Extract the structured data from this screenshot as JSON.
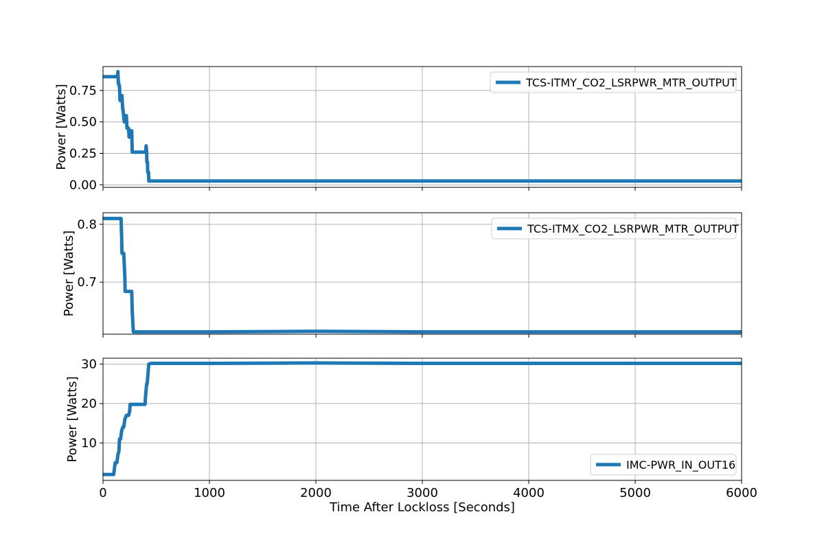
{
  "chart_data": [
    {
      "type": "line",
      "ylabel": "Power [Watts]",
      "xlabel": "",
      "xlim": [
        0,
        6000
      ],
      "ylim": [
        -0.02,
        0.94
      ],
      "xticks": [
        0,
        1000,
        2000,
        3000,
        4000,
        5000,
        6000
      ],
      "xtick_labels_visible": false,
      "yticks": [
        0.0,
        0.25,
        0.5,
        0.75
      ],
      "ytick_labels": [
        "0.00",
        "0.25",
        "0.50",
        "0.75"
      ],
      "grid": true,
      "legend_position": "top-right",
      "series": [
        {
          "name": "TCS-ITMY_CO2_LSRPWR_MTR_OUTPUT",
          "color": "#1f77b4",
          "x": [
            0,
            130,
            135,
            140,
            145,
            150,
            155,
            160,
            175,
            178,
            185,
            188,
            200,
            205,
            220,
            225,
            240,
            245,
            255,
            260,
            270,
            275,
            300,
            400,
            405,
            410,
            412,
            418,
            420,
            428,
            430,
            450,
            1000,
            2000,
            3000,
            4000,
            5000,
            6000
          ],
          "y": [
            0.86,
            0.86,
            0.86,
            0.9,
            0.8,
            0.8,
            0.78,
            0.67,
            0.67,
            0.71,
            0.6,
            0.6,
            0.5,
            0.55,
            0.55,
            0.45,
            0.45,
            0.38,
            0.38,
            0.43,
            0.43,
            0.26,
            0.26,
            0.26,
            0.31,
            0.26,
            0.18,
            0.18,
            0.1,
            0.1,
            0.03,
            0.03,
            0.03,
            0.03,
            0.03,
            0.03,
            0.03,
            0.03
          ]
        }
      ]
    },
    {
      "type": "line",
      "ylabel": "Power [Watts]",
      "xlabel": "",
      "xlim": [
        0,
        6000
      ],
      "ylim": [
        0.61,
        0.82
      ],
      "xticks": [
        0,
        1000,
        2000,
        3000,
        4000,
        5000,
        6000
      ],
      "xtick_labels_visible": false,
      "yticks": [
        0.7,
        0.8
      ],
      "ytick_labels": [
        "0.7",
        "0.8"
      ],
      "grid": true,
      "legend_position": "top-right",
      "series": [
        {
          "name": "TCS-ITMX_CO2_LSRPWR_MTR_OUTPUT",
          "color": "#1f77b4",
          "x": [
            0,
            170,
            175,
            178,
            195,
            200,
            205,
            208,
            270,
            275,
            280,
            285,
            300,
            1000,
            2000,
            3000,
            4000,
            5000,
            6000
          ],
          "y": [
            0.81,
            0.81,
            0.78,
            0.75,
            0.75,
            0.73,
            0.71,
            0.684,
            0.684,
            0.65,
            0.63,
            0.614,
            0.614,
            0.614,
            0.615,
            0.614,
            0.614,
            0.614,
            0.614
          ]
        }
      ]
    },
    {
      "type": "line",
      "ylabel": "Power [Watts]",
      "xlabel": "Time After Lockloss [Seconds]",
      "xlim": [
        0,
        6000
      ],
      "ylim": [
        0.5,
        31.5
      ],
      "xticks": [
        0,
        1000,
        2000,
        3000,
        4000,
        5000,
        6000
      ],
      "xtick_labels": [
        "0",
        "1000",
        "2000",
        "3000",
        "4000",
        "5000",
        "6000"
      ],
      "xtick_labels_visible": true,
      "yticks": [
        10,
        20,
        30
      ],
      "ytick_labels": [
        "10",
        "20",
        "30"
      ],
      "grid": true,
      "legend_position": "bottom-right",
      "series": [
        {
          "name": "IMC-PWR_IN_OUT16",
          "color": "#1f77b4",
          "x": [
            0,
            100,
            115,
            130,
            140,
            150,
            155,
            165,
            175,
            185,
            195,
            205,
            220,
            230,
            240,
            250,
            255,
            265,
            275,
            280,
            395,
            400,
            410,
            415,
            430,
            450,
            1000,
            2000,
            3000,
            4000,
            5000,
            6000
          ],
          "y": [
            2,
            2,
            5,
            5,
            7,
            8,
            11,
            11,
            13,
            14,
            14,
            16,
            17,
            17,
            17,
            18,
            19.8,
            19.8,
            19.8,
            19.8,
            19.8,
            22,
            25,
            25,
            30,
            30.2,
            30.2,
            30.3,
            30.2,
            30.2,
            30.2,
            30.2
          ]
        }
      ]
    }
  ]
}
